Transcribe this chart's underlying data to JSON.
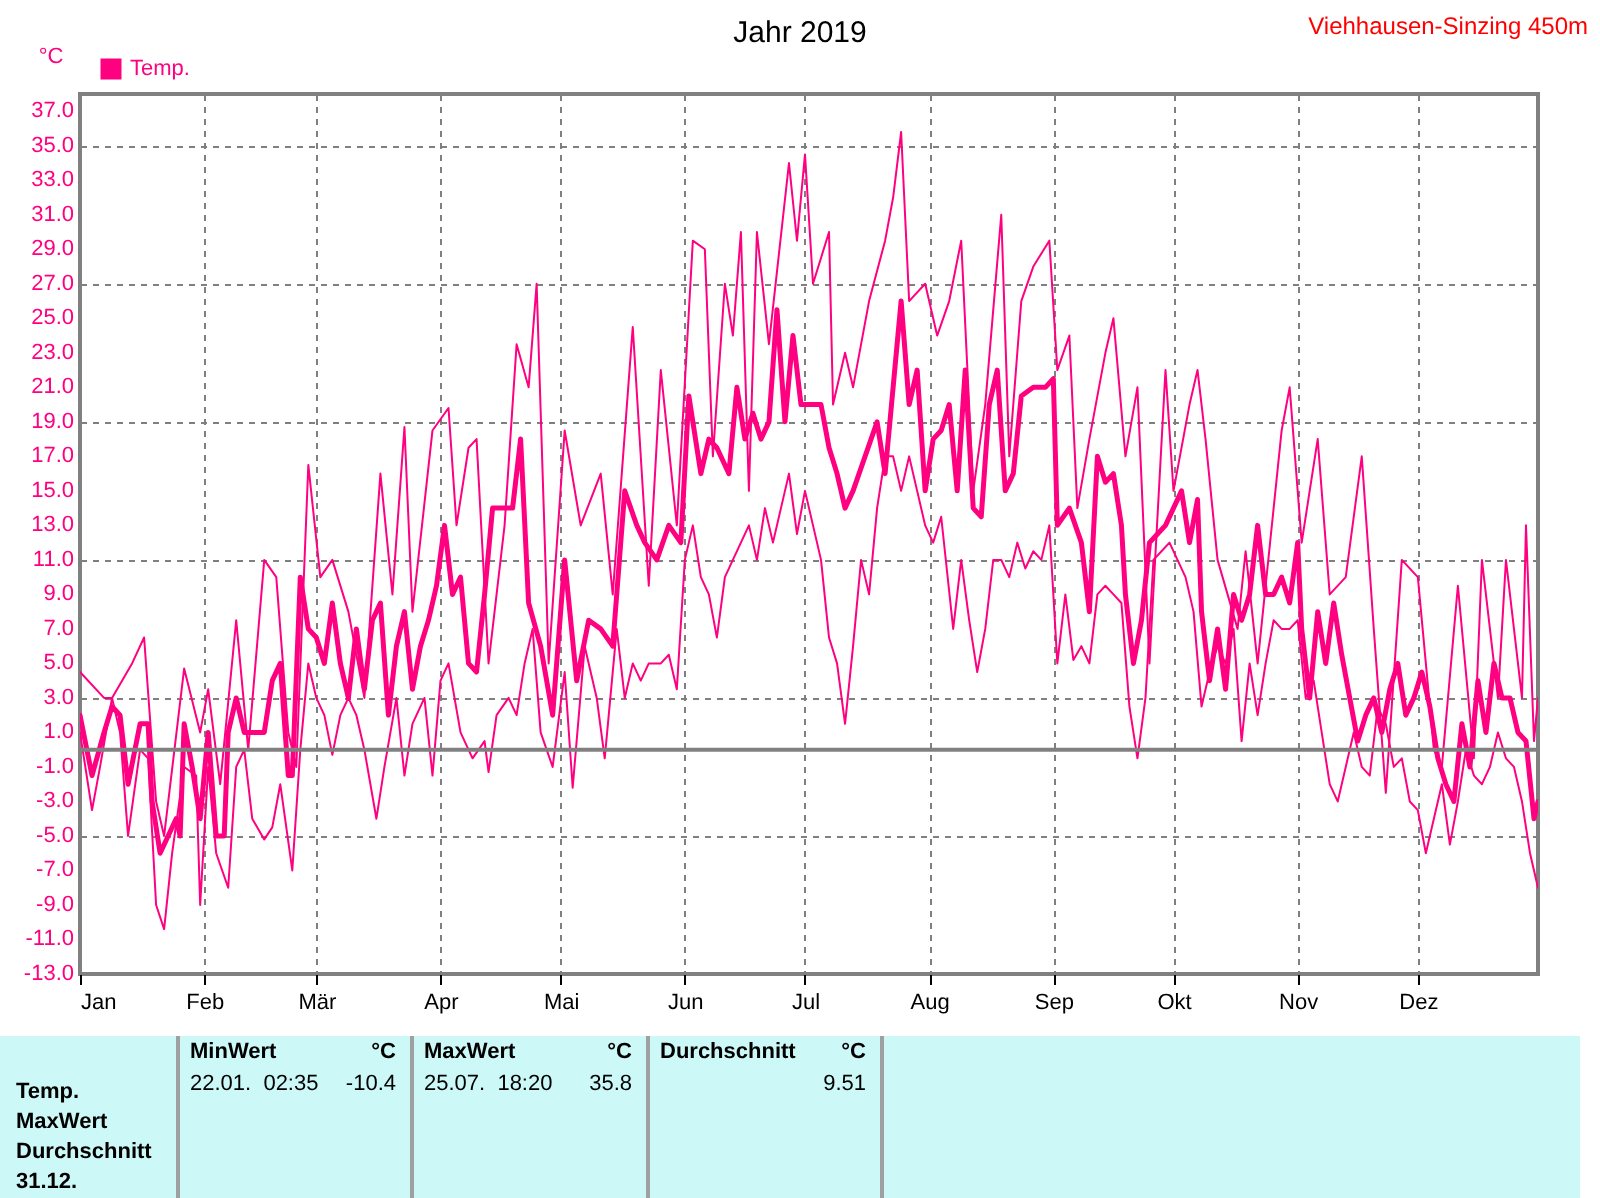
{
  "chart_data": {
    "type": "line",
    "title": "Jahr 2019",
    "ylabel": "°C",
    "annotations": [
      "Viehhausen-Sinzing 450m",
      "MinWert",
      "°C",
      "MaxWert",
      "°C",
      "Durchschnitt",
      "°C",
      "Temp.",
      "22.01.  02:35",
      "-10.4",
      "25.07.  18:20",
      "35.8",
      "9.51",
      "MaxWert",
      "Durchschnitt",
      "31.12."
    ],
    "xlim": [
      "--01-01",
      "--12-31"
    ],
    "xticks": [
      {
        "value": "--01-01",
        "label": "Jan"
      },
      {
        "value": "--02-01",
        "label": "Feb"
      },
      {
        "value": "--03-01",
        "label": "Mär"
      },
      {
        "value": "--04-01",
        "label": "Apr"
      },
      {
        "value": "--05-01",
        "label": "Mai"
      },
      {
        "value": "--06-01",
        "label": "Jun"
      },
      {
        "value": "--07-01",
        "label": "Jul"
      },
      {
        "value": "--08-01",
        "label": "Aug"
      },
      {
        "value": "--09-01",
        "label": "Sep"
      },
      {
        "value": "--10-01",
        "label": "Okt"
      },
      {
        "value": "--11-01",
        "label": "Nov"
      },
      {
        "value": "--12-01",
        "label": "Dez"
      }
    ],
    "ylim": [
      -13,
      38
    ],
    "yticks": [
      {
        "value": -13,
        "label": "-13.0"
      },
      {
        "value": -11,
        "label": "-11.0"
      },
      {
        "value": -9,
        "label": "-9.0"
      },
      {
        "value": -7,
        "label": "-7.0"
      },
      {
        "value": -5,
        "label": "-5.0"
      },
      {
        "value": -3,
        "label": "-3.0"
      },
      {
        "value": -1,
        "label": "-1.0"
      },
      {
        "value": 1,
        "label": "1.0"
      },
      {
        "value": 3,
        "label": "3.0"
      },
      {
        "value": 5,
        "label": "5.0"
      },
      {
        "value": 7,
        "label": "7.0"
      },
      {
        "value": 9,
        "label": "9.0"
      },
      {
        "value": 11,
        "label": "11.0"
      },
      {
        "value": 13,
        "label": "13.0"
      },
      {
        "value": 15,
        "label": "15.0"
      },
      {
        "value": 17,
        "label": "17.0"
      },
      {
        "value": 19,
        "label": "19.0"
      },
      {
        "value": 21,
        "label": "21.0"
      },
      {
        "value": 23,
        "label": "23.0"
      },
      {
        "value": 25,
        "label": "25.0"
      },
      {
        "value": 27,
        "label": "27.0"
      },
      {
        "value": 29,
        "label": "29.0"
      },
      {
        "value": 31,
        "label": "31.0"
      },
      {
        "value": 33,
        "label": "33.0"
      },
      {
        "value": 35,
        "label": "35.0"
      },
      {
        "value": 37,
        "label": "37.0"
      }
    ],
    "grid": true,
    "legend": "top left",
    "ref_lines": [
      {
        "axis": "y",
        "value": 0,
        "color": "#808080"
      }
    ],
    "series": [
      {
        "color": "#ff0080",
        "x": [
          "--01-01",
          "--01-07",
          "--01-09",
          "--01-14",
          "--01-17",
          "--01-20",
          "--01-22",
          "--01-27",
          "--01-31",
          "--02-02",
          "--02-05",
          "--02-09",
          "--02-12",
          "--02-16",
          "--02-19",
          "--02-22",
          "--02-24",
          "--02-27",
          "--03-02",
          "--03-05",
          "--03-09",
          "--03-13",
          "--03-17",
          "--03-20",
          "--03-23",
          "--03-25",
          "--03-30",
          "--04-03",
          "--04-05",
          "--04-08",
          "--04-10",
          "--04-13",
          "--04-17",
          "--04-20",
          "--04-23",
          "--04-25",
          "--04-28",
          "--05-02",
          "--05-06",
          "--05-11",
          "--05-14",
          "--05-19",
          "--05-23",
          "--05-26",
          "--05-30",
          "--06-03",
          "--06-06",
          "--06-08",
          "--06-11",
          "--06-13",
          "--06-15",
          "--06-17",
          "--06-19",
          "--06-22",
          "--06-27",
          "--06-29",
          "--07-01",
          "--07-03",
          "--07-07",
          "--07-08",
          "--07-11",
          "--07-13",
          "--07-17",
          "--07-21",
          "--07-23",
          "--07-25",
          "--07-27",
          "--07-31",
          "--08-03",
          "--08-06",
          "--08-09",
          "--08-12",
          "--08-15",
          "--08-19",
          "--08-21",
          "--08-24",
          "--08-27",
          "--08-31",
          "--09-02",
          "--09-05",
          "--09-07",
          "--09-10",
          "--09-14",
          "--09-16",
          "--09-19",
          "--09-22",
          "--09-25",
          "--09-29",
          "--10-01",
          "--10-05",
          "--10-07",
          "--10-09",
          "--10-12",
          "--10-17",
          "--10-19",
          "--10-22",
          "--10-26",
          "--10-28",
          "--10-30",
          "--11-02",
          "--11-06",
          "--11-09",
          "--11-13",
          "--11-17",
          "--11-20",
          "--11-23",
          "--11-27",
          "--12-01",
          "--12-05",
          "--12-07",
          "--12-11",
          "--12-15",
          "--12-17",
          "--12-21",
          "--12-23",
          "--12-27",
          "--12-28",
          "--12-30",
          "--12-31"
        ],
        "values": [
          4.5,
          3,
          3,
          5,
          6.5,
          -3,
          -5,
          4.7,
          1,
          3.5,
          -2,
          7.5,
          0,
          11,
          10,
          1,
          -1,
          16.5,
          10,
          11,
          8,
          3,
          16,
          9,
          18.7,
          8,
          18.5,
          19.8,
          13,
          17.5,
          18,
          5,
          13,
          23.5,
          21,
          27,
          5,
          18.5,
          13,
          16,
          9,
          24.5,
          9.5,
          22,
          13,
          29.5,
          29,
          17,
          27,
          24,
          30,
          15,
          30,
          23.5,
          34,
          29.5,
          34.5,
          27,
          30,
          20,
          23,
          21,
          26,
          29.5,
          32,
          35.8,
          26,
          27,
          24,
          26,
          29.5,
          15,
          20,
          31,
          17,
          26,
          28,
          29.5,
          22,
          24,
          14,
          18,
          23,
          25,
          17,
          21,
          5,
          22,
          15,
          20,
          22,
          18,
          11,
          7,
          11.5,
          5,
          14,
          18.5,
          21,
          12,
          18,
          9,
          10,
          17,
          7,
          -2.5,
          11,
          10,
          0,
          -1,
          9.5,
          -0.5,
          11,
          3,
          11,
          3,
          13,
          0.5,
          3
        ]
      },
      {
        "name": "Temp.",
        "color": "#ff0080",
        "x": [
          "--01-01",
          "--01-04",
          "--01-07",
          "--01-09",
          "--01-11",
          "--01-13",
          "--01-16",
          "--01-18",
          "--01-19",
          "--01-21",
          "--01-23",
          "--01-25",
          "--01-26",
          "--01-27",
          "--01-29",
          "--01-31",
          "--02-02",
          "--02-04",
          "--02-06",
          "--02-07",
          "--02-09",
          "--02-11",
          "--02-13",
          "--02-16",
          "--02-18",
          "--02-20",
          "--02-22",
          "--02-23",
          "--02-25",
          "--02-27",
          "--03-01",
          "--03-03",
          "--03-05",
          "--03-07",
          "--03-09",
          "--03-11",
          "--03-13",
          "--03-15",
          "--03-17",
          "--03-19",
          "--03-21",
          "--03-23",
          "--03-25",
          "--03-27",
          "--03-29",
          "--03-31",
          "--04-02",
          "--04-04",
          "--04-06",
          "--04-08",
          "--04-10",
          "--04-12",
          "--04-14",
          "--04-17",
          "--04-19",
          "--04-21",
          "--04-23",
          "--04-26",
          "--04-29",
          "--05-02",
          "--05-05",
          "--05-08",
          "--05-11",
          "--05-14",
          "--05-17",
          "--05-20",
          "--05-22",
          "--05-25",
          "--05-28",
          "--05-31",
          "--06-02",
          "--06-05",
          "--06-07",
          "--06-09",
          "--06-12",
          "--06-14",
          "--06-16",
          "--06-18",
          "--06-20",
          "--06-22",
          "--06-24",
          "--06-26",
          "--06-28",
          "--06-30",
          "--07-02",
          "--07-05",
          "--07-07",
          "--07-09",
          "--07-11",
          "--07-13",
          "--07-16",
          "--07-19",
          "--07-21",
          "--07-23",
          "--07-25",
          "--07-27",
          "--07-29",
          "--07-31",
          "--08-02",
          "--08-04",
          "--08-06",
          "--08-08",
          "--08-10",
          "--08-12",
          "--08-14",
          "--08-16",
          "--08-18",
          "--08-20",
          "--08-22",
          "--08-24",
          "--08-27",
          "--08-30",
          "--09-01",
          "--09-02",
          "--09-05",
          "--09-08",
          "--09-10",
          "--09-12",
          "--09-14",
          "--09-16",
          "--09-18",
          "--09-19",
          "--09-21",
          "--09-23",
          "--09-25",
          "--09-27",
          "--09-29",
          "--10-01",
          "--10-03",
          "--10-05",
          "--10-07",
          "--10-08",
          "--10-10",
          "--10-12",
          "--10-14",
          "--10-16",
          "--10-18",
          "--10-20",
          "--10-22",
          "--10-24",
          "--10-26",
          "--10-28",
          "--10-30",
          "--11-01",
          "--11-02",
          "--11-04",
          "--11-06",
          "--11-08",
          "--11-10",
          "--11-12",
          "--11-14",
          "--11-16",
          "--11-18",
          "--11-20",
          "--11-22",
          "--11-24",
          "--11-26",
          "--11-28",
          "--11-30",
          "--12-02",
          "--12-04",
          "--12-06",
          "--12-08",
          "--12-10",
          "--12-12",
          "--12-14",
          "--12-16",
          "--12-18",
          "--12-20",
          "--12-22",
          "--12-24",
          "--12-26",
          "--12-28",
          "--12-30",
          "--12-31"
        ],
        "values": [
          2,
          -1.5,
          1,
          2.5,
          2,
          -2,
          1.5,
          1.5,
          -3,
          -6,
          -5,
          -4,
          -5,
          1.5,
          -1,
          -4,
          1,
          -5,
          -5,
          1,
          3,
          1,
          1,
          1,
          4,
          5,
          -1.5,
          -1.5,
          10,
          7,
          6.5,
          5,
          8.5,
          5,
          3,
          7,
          3.5,
          7.5,
          8.5,
          2,
          6,
          8,
          3.5,
          6,
          7.5,
          9.5,
          13,
          9,
          10,
          5,
          4.5,
          9,
          14,
          14,
          14,
          18,
          8.5,
          6,
          2,
          11,
          4,
          7.5,
          7,
          6,
          15,
          13,
          12,
          11,
          13,
          12,
          20.5,
          16,
          18,
          17.5,
          16,
          21,
          18,
          19.5,
          18,
          19,
          25.5,
          19,
          24,
          20,
          20,
          20,
          17.5,
          16,
          14,
          15,
          17,
          19,
          16,
          21,
          26,
          20,
          22,
          15,
          18,
          18.5,
          20,
          15,
          22,
          14,
          13.5,
          20,
          22,
          15,
          16,
          20.5,
          21,
          21,
          21.5,
          13,
          14,
          12,
          8,
          17,
          15.5,
          16,
          13,
          9,
          5,
          7.5,
          12,
          12.5,
          13,
          14,
          15,
          12,
          14.5,
          8,
          4,
          7,
          3.5,
          9,
          7.5,
          9,
          13,
          9,
          9,
          10,
          8.5,
          12,
          7,
          3,
          8,
          5,
          8.5,
          5.5,
          3,
          0.5,
          2,
          3,
          1,
          3.5,
          5,
          2,
          3,
          4.5,
          2.5,
          -0.5,
          -2,
          -3,
          1.5,
          -1,
          4,
          1,
          5,
          3,
          3,
          1,
          0.5,
          -4,
          -3
        ]
      },
      {
        "color": "#ff0080",
        "x": [
          "--01-01",
          "--01-04",
          "--01-06",
          "--01-09",
          "--01-11",
          "--01-13",
          "--01-16",
          "--01-18",
          "--01-20",
          "--01-22",
          "--01-24",
          "--01-27",
          "--01-30",
          "--01-31",
          "--02-02",
          "--02-04",
          "--02-07",
          "--02-09",
          "--02-11",
          "--02-13",
          "--02-16",
          "--02-18",
          "--02-20",
          "--02-23",
          "--02-25",
          "--02-27",
          "--03-01",
          "--03-03",
          "--03-05",
          "--03-07",
          "--03-09",
          "--03-11",
          "--03-13",
          "--03-16",
          "--03-18",
          "--03-21",
          "--03-23",
          "--03-25",
          "--03-28",
          "--03-30",
          "--04-01",
          "--04-03",
          "--04-06",
          "--04-09",
          "--04-12",
          "--04-13",
          "--04-15",
          "--04-18",
          "--04-20",
          "--04-22",
          "--04-24",
          "--04-26",
          "--04-29",
          "--05-02",
          "--05-04",
          "--05-07",
          "--05-10",
          "--05-12",
          "--05-15",
          "--05-17",
          "--05-19",
          "--05-21",
          "--05-23",
          "--05-26",
          "--05-28",
          "--05-30",
          "--06-01",
          "--06-03",
          "--06-05",
          "--06-07",
          "--06-09",
          "--06-11",
          "--06-13",
          "--06-15",
          "--06-17",
          "--06-19",
          "--06-21",
          "--06-23",
          "--06-25",
          "--06-27",
          "--06-29",
          "--07-01",
          "--07-03",
          "--07-05",
          "--07-07",
          "--07-09",
          "--07-11",
          "--07-13",
          "--07-15",
          "--07-17",
          "--07-19",
          "--07-21",
          "--07-23",
          "--07-25",
          "--07-27",
          "--07-29",
          "--07-31",
          "--08-02",
          "--08-04",
          "--08-07",
          "--08-09",
          "--08-11",
          "--08-13",
          "--08-15",
          "--08-17",
          "--08-19",
          "--08-21",
          "--08-23",
          "--08-25",
          "--08-27",
          "--08-29",
          "--08-31",
          "--09-02",
          "--09-04",
          "--09-06",
          "--09-08",
          "--09-10",
          "--09-12",
          "--09-14",
          "--09-16",
          "--09-18",
          "--09-20",
          "--09-22",
          "--09-24",
          "--09-26",
          "--09-28",
          "--09-30",
          "--10-02",
          "--10-04",
          "--10-06",
          "--10-08",
          "--10-10",
          "--10-12",
          "--10-14",
          "--10-16",
          "--10-18",
          "--10-20",
          "--10-22",
          "--10-24",
          "--10-26",
          "--10-28",
          "--10-30",
          "--11-01",
          "--11-03",
          "--11-05",
          "--11-07",
          "--11-09",
          "--11-11",
          "--11-13",
          "--11-15",
          "--11-17",
          "--11-19",
          "--11-21",
          "--11-23",
          "--11-25",
          "--11-27",
          "--11-29",
          "--12-01",
          "--12-03",
          "--12-05",
          "--12-07",
          "--12-09",
          "--12-11",
          "--12-13",
          "--12-15",
          "--12-17",
          "--12-19",
          "--12-21",
          "--12-23",
          "--12-25",
          "--12-27",
          "--12-29",
          "--12-31"
        ],
        "values": [
          1,
          -3.5,
          -1,
          3,
          1,
          -5,
          0,
          -0.5,
          -9,
          -10.4,
          -6,
          -1,
          -1.5,
          -9,
          -1,
          -6,
          -8,
          -1,
          0,
          -4,
          -5.2,
          -4.5,
          -2,
          -7,
          0,
          5,
          3,
          2,
          -0.3,
          2,
          3,
          2,
          0,
          -4,
          -1,
          3,
          -1.5,
          1.5,
          3,
          -1.5,
          4,
          5,
          1,
          -0.5,
          0.5,
          -1.3,
          2,
          3,
          2,
          5,
          7,
          1,
          -1,
          4.5,
          -2.2,
          6,
          3,
          -0.5,
          7,
          3,
          5,
          4,
          5,
          5,
          5.5,
          3.5,
          11,
          13,
          10,
          9,
          6.5,
          10,
          11,
          12,
          13,
          11,
          14,
          12,
          14,
          16,
          12.5,
          15,
          13,
          11,
          6.5,
          5,
          1.5,
          6,
          11,
          9,
          14,
          17,
          17,
          15,
          17,
          15,
          13,
          12,
          13.5,
          7,
          11,
          7.5,
          4.5,
          7,
          11,
          11,
          10,
          12,
          10.5,
          11.5,
          11,
          13,
          5,
          9,
          5.2,
          6,
          5,
          9,
          9.5,
          9,
          8.5,
          2.5,
          -0.5,
          3,
          11,
          11.5,
          12,
          11,
          10,
          8,
          2.5,
          4.5,
          6,
          5,
          7,
          0.5,
          5,
          2,
          5,
          7.5,
          7,
          7,
          7.5,
          3,
          4,
          1,
          -2,
          -3,
          -1,
          1,
          -1,
          -1.5,
          2.5,
          1.5,
          -1,
          -0.5,
          -3,
          -3.5,
          -6,
          -4,
          -2,
          -5.5,
          -3,
          0,
          -1.5,
          -2,
          -1,
          1,
          -0.5,
          -1,
          -3,
          -6,
          -8
        ]
      }
    ]
  }
}
